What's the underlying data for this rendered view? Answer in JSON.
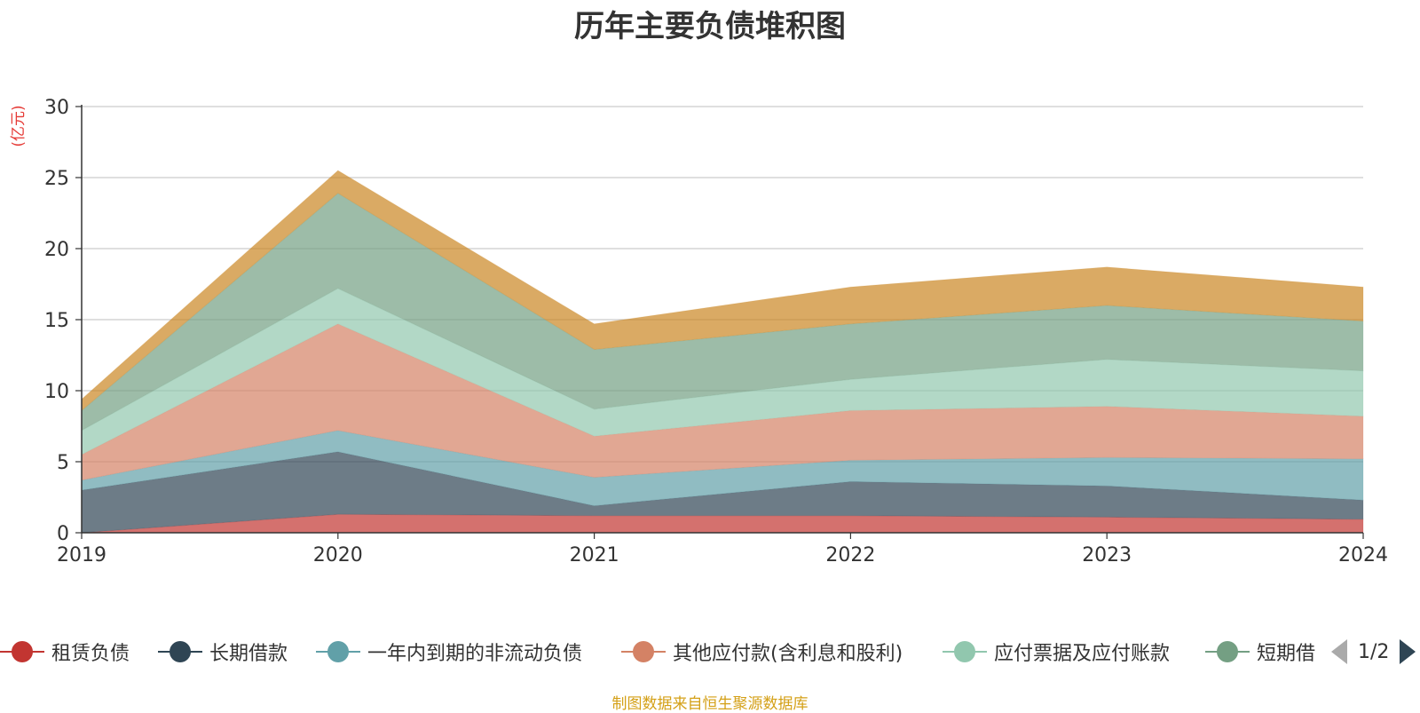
{
  "chart_data": {
    "type": "area",
    "stacked": true,
    "title": "历年主要负债堆积图",
    "ylabel": "(亿元)",
    "xlabel": "",
    "ylim": [
      0,
      30
    ],
    "yticks": [
      0,
      5,
      10,
      15,
      20,
      25,
      30
    ],
    "categories": [
      "2019",
      "2020",
      "2021",
      "2022",
      "2023",
      "2024"
    ],
    "series": [
      {
        "name": "租赁负债",
        "color": "#c23531",
        "values": [
          0.0,
          1.3,
          1.2,
          1.2,
          1.1,
          0.95
        ]
      },
      {
        "name": "长期借款",
        "color": "#2f4554",
        "values": [
          3.0,
          4.4,
          0.7,
          2.4,
          2.2,
          1.35
        ]
      },
      {
        "name": "一年内到期的非流动负债",
        "color": "#61a0a8",
        "values": [
          0.7,
          1.5,
          2.0,
          1.5,
          2.0,
          2.9
        ]
      },
      {
        "name": "其他应付款(含利息和股利)",
        "color": "#d48265",
        "values": [
          1.8,
          7.5,
          2.9,
          3.5,
          3.6,
          3.0
        ]
      },
      {
        "name": "应付票据及应付账款",
        "color": "#91c7ae",
        "values": [
          1.7,
          2.5,
          1.9,
          2.2,
          3.3,
          3.2
        ]
      },
      {
        "name": "短期借款",
        "color": "#749f83",
        "values": [
          1.4,
          6.7,
          4.2,
          3.9,
          3.8,
          3.5
        ]
      },
      {
        "name": "",
        "color": "#ca8622",
        "values": [
          0.8,
          1.6,
          1.8,
          2.6,
          2.7,
          2.4
        ]
      }
    ]
  },
  "legend": {
    "items": [
      {
        "label": "租赁负债",
        "color": "#c23531"
      },
      {
        "label": "长期借款",
        "color": "#2f4554"
      },
      {
        "label": "一年内到期的非流动负债",
        "color": "#61a0a8"
      },
      {
        "label": "其他应付款(含利息和股利)",
        "color": "#d48265"
      },
      {
        "label": "应付票据及应付账款",
        "color": "#91c7ae"
      },
      {
        "label": "短期借款",
        "color": "#749f83"
      }
    ],
    "page_text": "1/2"
  },
  "source_note": "制图数据来自恒生聚源数据库"
}
